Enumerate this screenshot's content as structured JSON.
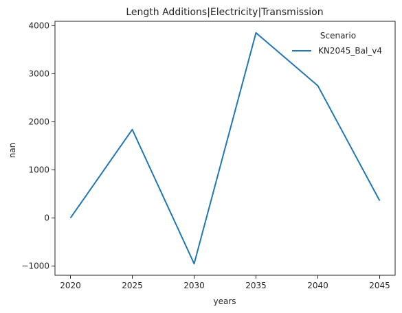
{
  "chart_data": {
    "type": "line",
    "title": "Length Additions|Electricity|Transmission",
    "xlabel": "years",
    "ylabel": "nan",
    "x": [
      2020,
      2025,
      2030,
      2035,
      2040,
      2045
    ],
    "series": [
      {
        "name": "KN2045_Bal_v4",
        "values": [
          0,
          1840,
          -950,
          3850,
          2750,
          360
        ],
        "color": "#1f77b4"
      }
    ],
    "xticks": [
      2020,
      2025,
      2030,
      2035,
      2040,
      2045
    ],
    "yticks": [
      -1000,
      0,
      1000,
      2000,
      3000,
      4000
    ],
    "xlim": [
      2018.75,
      2046.25
    ],
    "ylim": [
      -1190,
      4090
    ],
    "legend": {
      "title": "Scenario",
      "placement": "top-right"
    },
    "grid": false
  }
}
